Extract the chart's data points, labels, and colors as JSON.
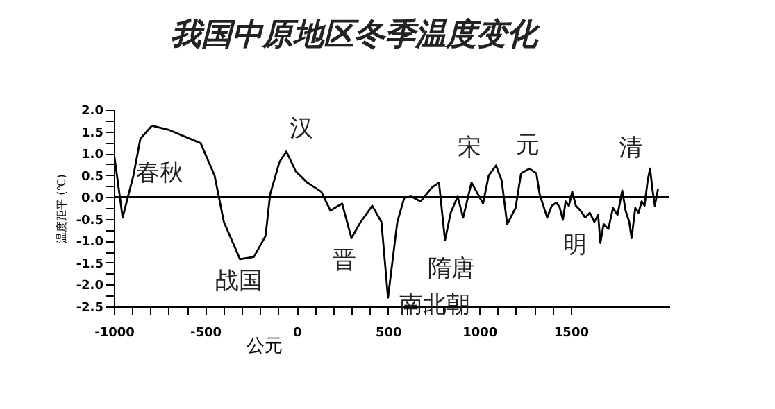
{
  "chart_data": {
    "type": "line",
    "title": "我国中原地区冬季温度变化",
    "xlabel": "公元",
    "ylabel": "温度距平 (℃)",
    "x": [
      -1000,
      -952,
      -893,
      -855,
      -792,
      -703,
      -525,
      -449,
      -398,
      -310,
      -234,
      -170,
      -145,
      -94,
      -56,
      -5,
      58,
      135,
      185,
      249,
      300,
      350,
      414,
      464,
      500,
      551,
      589,
      627,
      678,
      741,
      779,
      812,
      843,
      881,
      911,
      957,
      1020,
      1051,
      1091,
      1122,
      1152,
      1198,
      1228,
      1274,
      1312,
      1330,
      1371,
      1396,
      1421,
      1439,
      1457,
      1472,
      1490,
      1508,
      1528,
      1553,
      1579,
      1604,
      1629,
      1650,
      1662,
      1680,
      1706,
      1731,
      1756,
      1782,
      1800,
      1820,
      1833,
      1853,
      1871,
      1888,
      1904,
      1921,
      1934,
      1947,
      1960,
      1977
    ],
    "series": [
      {
        "color": "#000000",
        "values": [
          1.02,
          -0.47,
          0.49,
          1.33,
          1.63,
          1.54,
          1.23,
          0.49,
          -0.57,
          -1.42,
          -1.37,
          -0.89,
          0.06,
          0.8,
          1.04,
          0.59,
          0.33,
          0.12,
          -0.31,
          -0.15,
          -0.94,
          -0.57,
          -0.2,
          -0.57,
          -2.3,
          -0.57,
          -0.02,
          0.01,
          -0.1,
          0.22,
          0.33,
          -0.99,
          -0.36,
          0.01,
          -0.47,
          0.33,
          -0.15,
          0.49,
          0.72,
          0.38,
          -0.62,
          -0.25,
          0.54,
          0.65,
          0.54,
          0.06,
          -0.47,
          -0.2,
          -0.13,
          -0.23,
          -0.52,
          -0.1,
          -0.2,
          0.12,
          -0.2,
          -0.31,
          -0.47,
          -0.36,
          -0.57,
          -0.41,
          -1.05,
          -0.62,
          -0.73,
          -0.25,
          -0.41,
          0.15,
          -0.31,
          -0.57,
          -0.94,
          -0.25,
          -0.36,
          -0.1,
          -0.2,
          0.38,
          0.65,
          0.17,
          -0.2,
          0.17
        ]
      }
    ],
    "xlim": [
      -1000,
      2040
    ],
    "xticks": [
      -1000,
      {
        "value": -900,
        "label": null
      },
      {
        "value": -800,
        "label": null
      },
      {
        "value": -700,
        "label": null
      },
      {
        "value": -600,
        "label": null
      },
      -500,
      {
        "value": -400,
        "label": null
      },
      {
        "value": -300,
        "label": null
      },
      {
        "value": -200,
        "label": null
      },
      {
        "value": -100,
        "label": null
      },
      0,
      {
        "value": 100,
        "label": null
      },
      {
        "value": 200,
        "label": null
      },
      {
        "value": 300,
        "label": null
      },
      {
        "value": 400,
        "label": null
      },
      500,
      {
        "value": 600,
        "label": null
      },
      {
        "value": 700,
        "label": null
      },
      {
        "value": 800,
        "label": null
      },
      {
        "value": 900,
        "label": null
      },
      1000,
      {
        "value": 1100,
        "label": null
      },
      {
        "value": 1200,
        "label": null
      },
      {
        "value": 1300,
        "label": null
      },
      {
        "value": 1400,
        "label": null
      },
      1500
    ],
    "ylim": [
      -2.5,
      2.0
    ],
    "yticks": [
      {
        "value": -2.5,
        "label": "-2.5"
      },
      {
        "value": -2.25,
        "label": null
      },
      {
        "value": -2,
        "label": "-2.0"
      },
      {
        "value": -1.75,
        "label": null
      },
      {
        "value": -1.5,
        "label": "-1.5"
      },
      {
        "value": -1.25,
        "label": null
      },
      {
        "value": -1,
        "label": "-1.0"
      },
      {
        "value": -0.75,
        "label": null
      },
      {
        "value": -0.5,
        "label": "-0.5"
      },
      {
        "value": -0.25,
        "label": null
      },
      {
        "value": 0,
        "label": "0.0"
      },
      {
        "value": 0.25,
        "label": null
      },
      {
        "value": 0.5,
        "label": "0.5"
      },
      {
        "value": 0.75,
        "label": null
      },
      {
        "value": 1,
        "label": "1.0"
      },
      {
        "value": 1.25,
        "label": null
      },
      {
        "value": 1.5,
        "label": "1.5"
      },
      {
        "value": 1.75,
        "label": null
      },
      {
        "value": 2,
        "label": "2.0"
      }
    ],
    "ref_lines": [
      {
        "axis": "y",
        "value": 0,
        "color": "#000000"
      }
    ],
    "annotations": [
      "春秋",
      "战国",
      "汉",
      "晋",
      "南北朝",
      "隋唐",
      "宋",
      "元",
      "明",
      "清"
    ],
    "grid": false
  }
}
